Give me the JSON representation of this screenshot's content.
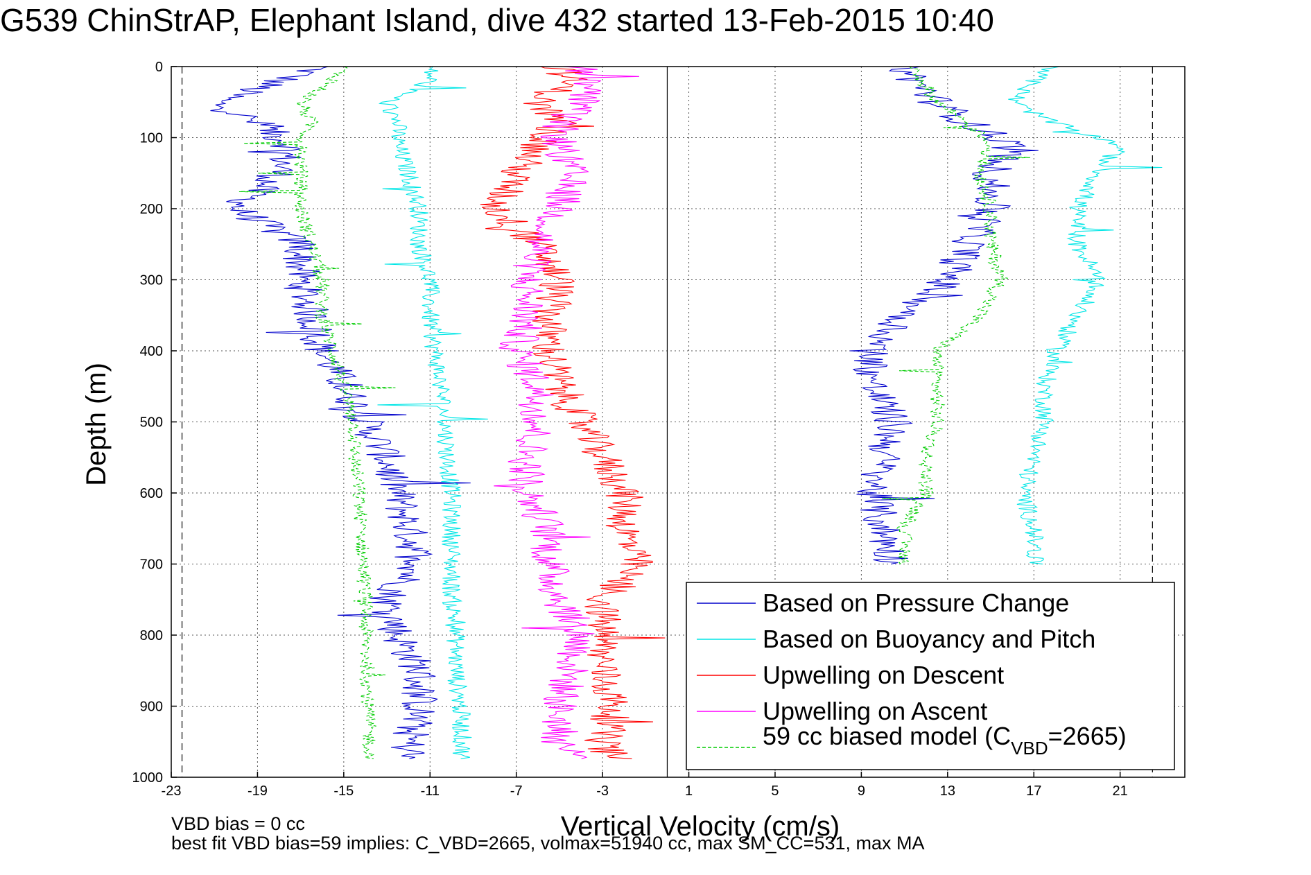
{
  "chart_data": {
    "type": "line",
    "title": "G539 ChinStrAP, Elephant Island, dive 432 started 13-Feb-2015 10:40",
    "xlabel": "Vertical Velocity (cm/s)",
    "ylabel": "Depth (m)",
    "xlim": [
      -23,
      24
    ],
    "ylim": [
      0,
      1000
    ],
    "y_reversed": true,
    "xticks": [
      -23,
      -19,
      -15,
      -11,
      -7,
      -3,
      1,
      5,
      9,
      13,
      17,
      21
    ],
    "yticks": [
      0,
      100,
      200,
      300,
      400,
      500,
      600,
      700,
      800,
      900,
      1000
    ],
    "grid": true,
    "legend_position": "bottom-right",
    "vertical_lines": [
      {
        "x": 0,
        "style": "solid"
      },
      {
        "x": -22.5,
        "style": "dashed"
      },
      {
        "x": 22.5,
        "style": "dashed"
      }
    ],
    "legend": [
      {
        "label": "Based on Pressure Change",
        "color": "#0000cc",
        "dash": false
      },
      {
        "label": "Based on Buoyancy and Pitch",
        "color": "#00e6e6",
        "dash": false
      },
      {
        "label": "Upwelling on Descent",
        "color": "#ff0000",
        "dash": false
      },
      {
        "label": "Upwelling on Ascent",
        "color": "#ff00ff",
        "dash": false
      },
      {
        "label_main": "59 cc biased model (C",
        "label_sub": "VBD",
        "label_end": "=2665)",
        "color": "#00cc00",
        "dash": true
      }
    ],
    "series": [
      {
        "name": "pressure_descent",
        "color": "#0000cc",
        "depth": [
          0,
          20,
          50,
          80,
          110,
          150,
          200,
          250,
          300,
          350,
          400,
          450,
          500,
          550,
          600,
          650,
          700,
          750,
          800,
          850,
          900,
          950,
          975
        ],
        "velocity": [
          -16,
          -18,
          -21,
          -19,
          -17.5,
          -18,
          -20,
          -17,
          -17,
          -16.5,
          -16,
          -15,
          -14,
          -13,
          -12.5,
          -12,
          -11.5,
          -13,
          -12.5,
          -11.5,
          -11.5,
          -12,
          -12
        ]
      },
      {
        "name": "buoyancy_descent",
        "color": "#00e6e6",
        "depth": [
          0,
          20,
          50,
          80,
          110,
          150,
          200,
          250,
          300,
          350,
          400,
          450,
          500,
          550,
          600,
          650,
          700,
          750,
          800,
          850,
          900,
          950,
          975
        ],
        "velocity": [
          -11,
          -11,
          -13,
          -12.5,
          -12.5,
          -12,
          -11.5,
          -11.5,
          -11,
          -11,
          -10.8,
          -10.5,
          -10.3,
          -10.2,
          -10,
          -10,
          -10,
          -10,
          -9.8,
          -9.8,
          -9.6,
          -9.5,
          -9.5
        ]
      },
      {
        "name": "model_descent",
        "color": "#00cc00",
        "depth": [
          0,
          20,
          50,
          80,
          110,
          150,
          200,
          250,
          300,
          350,
          400,
          450,
          500,
          550,
          600,
          650,
          700,
          750,
          800,
          850,
          900,
          950,
          975
        ],
        "velocity": [
          -15,
          -15.5,
          -17,
          -16.5,
          -17,
          -17,
          -17,
          -16.5,
          -16,
          -16,
          -15.5,
          -15,
          -14.5,
          -14.5,
          -14.3,
          -14.2,
          -14.1,
          -14,
          -14,
          -13.9,
          -13.9,
          -13.8,
          -13.8
        ]
      },
      {
        "name": "upwelling_descent",
        "color": "#ff0000",
        "depth": [
          0,
          20,
          50,
          80,
          110,
          150,
          200,
          250,
          300,
          350,
          400,
          450,
          500,
          550,
          600,
          650,
          700,
          750,
          800,
          850,
          900,
          950,
          975
        ],
        "velocity": [
          -5,
          -4.5,
          -6,
          -5,
          -6,
          -7,
          -8,
          -6,
          -5,
          -5.5,
          -5.5,
          -5,
          -4,
          -3,
          -2,
          -2,
          -1.5,
          -3,
          -3,
          -3,
          -2.5,
          -3,
          -2.5
        ]
      },
      {
        "name": "pressure_ascent",
        "color": "#0000cc",
        "depth": [
          0,
          20,
          50,
          80,
          110,
          150,
          200,
          250,
          300,
          350,
          400,
          450,
          500,
          550,
          600,
          650,
          700
        ],
        "velocity": [
          11,
          11.5,
          12.5,
          14,
          16,
          15,
          15,
          14,
          13,
          11,
          9.5,
          9.5,
          10.5,
          10,
          9.5,
          10,
          10.5
        ]
      },
      {
        "name": "buoyancy_ascent",
        "color": "#00e6e6",
        "depth": [
          0,
          20,
          50,
          80,
          110,
          150,
          200,
          250,
          300,
          350,
          400,
          450,
          500,
          550,
          600,
          650,
          700
        ],
        "velocity": [
          18,
          17,
          16,
          18,
          21,
          20,
          19,
          19,
          20,
          19,
          18,
          17.5,
          17.5,
          17,
          16.5,
          17,
          17
        ]
      },
      {
        "name": "model_ascent",
        "color": "#00cc00",
        "depth": [
          0,
          20,
          50,
          80,
          110,
          150,
          200,
          250,
          300,
          350,
          400,
          450,
          500,
          550,
          600,
          650,
          700
        ],
        "velocity": [
          11.5,
          11.8,
          12.5,
          14,
          15,
          14.5,
          15,
          15,
          15.5,
          14.5,
          12.5,
          12.5,
          12.5,
          12,
          12,
          11,
          11
        ]
      },
      {
        "name": "upwelling_ascent",
        "color": "#ff00ff",
        "depth": [
          0,
          20,
          50,
          80,
          110,
          150,
          200,
          250,
          300,
          350,
          400,
          450,
          500,
          550,
          600,
          650,
          700,
          750,
          800,
          850,
          900,
          950,
          975
        ],
        "velocity": [
          -4,
          -3.5,
          -4,
          -5,
          -5,
          -4.5,
          -5,
          -6,
          -6.5,
          -6.5,
          -7,
          -6,
          -6,
          -6.5,
          -6.5,
          -5.5,
          -5.5,
          -5,
          -4,
          -4.5,
          -5,
          -5,
          -4
        ]
      }
    ]
  },
  "notes": {
    "line1": "VBD bias = 0 cc",
    "line2": "best fit VBD bias=59 implies: C_VBD=2665, volmax=51940 cc, max SM_CC=531, max MA"
  }
}
